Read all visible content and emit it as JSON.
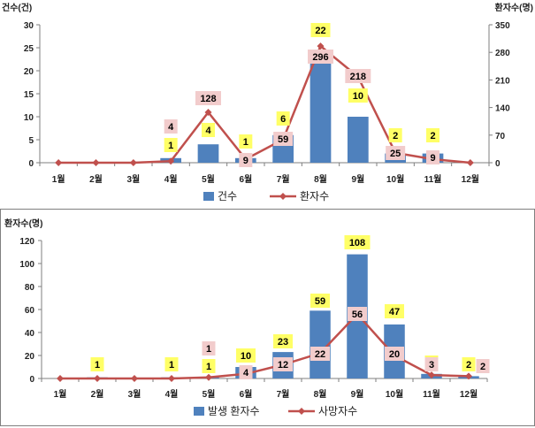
{
  "chart_data": [
    {
      "type": "bar+line",
      "categories": [
        "1월",
        "2월",
        "3월",
        "4월",
        "5월",
        "6월",
        "7월",
        "8월",
        "9월",
        "10월",
        "11월",
        "12월"
      ],
      "y_left_title": "건수(건)",
      "y_right_title": "환자수(명)",
      "y_left_ticks": [
        "0",
        "5",
        "10",
        "15",
        "20",
        "25",
        "30"
      ],
      "y_right_ticks": [
        "0",
        "70",
        "140",
        "210",
        "280",
        "350"
      ],
      "ylim_left": [
        0,
        30
      ],
      "ylim_right": [
        0,
        350
      ],
      "series": [
        {
          "name": "건수",
          "type": "bar",
          "axis": "left",
          "color": "#4f81bd",
          "values": [
            0,
            0,
            0,
            1,
            4,
            1,
            6,
            22,
            10,
            2,
            2,
            0
          ],
          "labels": [
            "",
            "",
            "",
            "1",
            "4",
            "1",
            "6",
            "22",
            "10",
            "2",
            "2",
            ""
          ]
        },
        {
          "name": "환자수",
          "type": "line",
          "axis": "right",
          "color": "#c0504d",
          "values": [
            0,
            0,
            0,
            4,
            128,
            9,
            59,
            296,
            218,
            25,
            9,
            0
          ],
          "labels": [
            "",
            "",
            "",
            "4",
            "128",
            "9",
            "59",
            "296",
            "218",
            "25",
            "9",
            ""
          ]
        }
      ],
      "legend_position": "bottom",
      "grid": false
    },
    {
      "type": "bar+line",
      "categories": [
        "1월",
        "2월",
        "3월",
        "4월",
        "5월",
        "6월",
        "7월",
        "8월",
        "9월",
        "10월",
        "11월",
        "12월"
      ],
      "y_left_title": "환자수(명)",
      "y_left_ticks": [
        "0",
        "20",
        "40",
        "60",
        "80",
        "100",
        "120"
      ],
      "ylim_left": [
        0,
        120
      ],
      "series": [
        {
          "name": "발생 환자수",
          "type": "bar",
          "axis": "left",
          "color": "#4f81bd",
          "values": [
            0,
            1,
            0,
            1,
            1,
            10,
            23,
            59,
            108,
            47,
            4,
            2
          ],
          "labels": [
            "",
            "1",
            "",
            "1",
            "1",
            "10",
            "23",
            "59",
            "108",
            "47",
            "4",
            "2"
          ]
        },
        {
          "name": "사망자수",
          "type": "line",
          "axis": "left",
          "color": "#c0504d",
          "values": [
            0,
            0,
            0,
            0,
            1,
            4,
            12,
            22,
            56,
            20,
            3,
            2
          ],
          "labels": [
            "",
            "",
            "",
            "",
            "1",
            "4",
            "12",
            "22",
            "56",
            "20",
            "3",
            "2"
          ]
        }
      ],
      "legend_position": "bottom",
      "grid": false
    }
  ],
  "style": {
    "count_label_bg": "#ffff66",
    "line_label_bg": "#f2cccc",
    "axis_color": "#7f7f7f",
    "text_color": "#222222"
  }
}
